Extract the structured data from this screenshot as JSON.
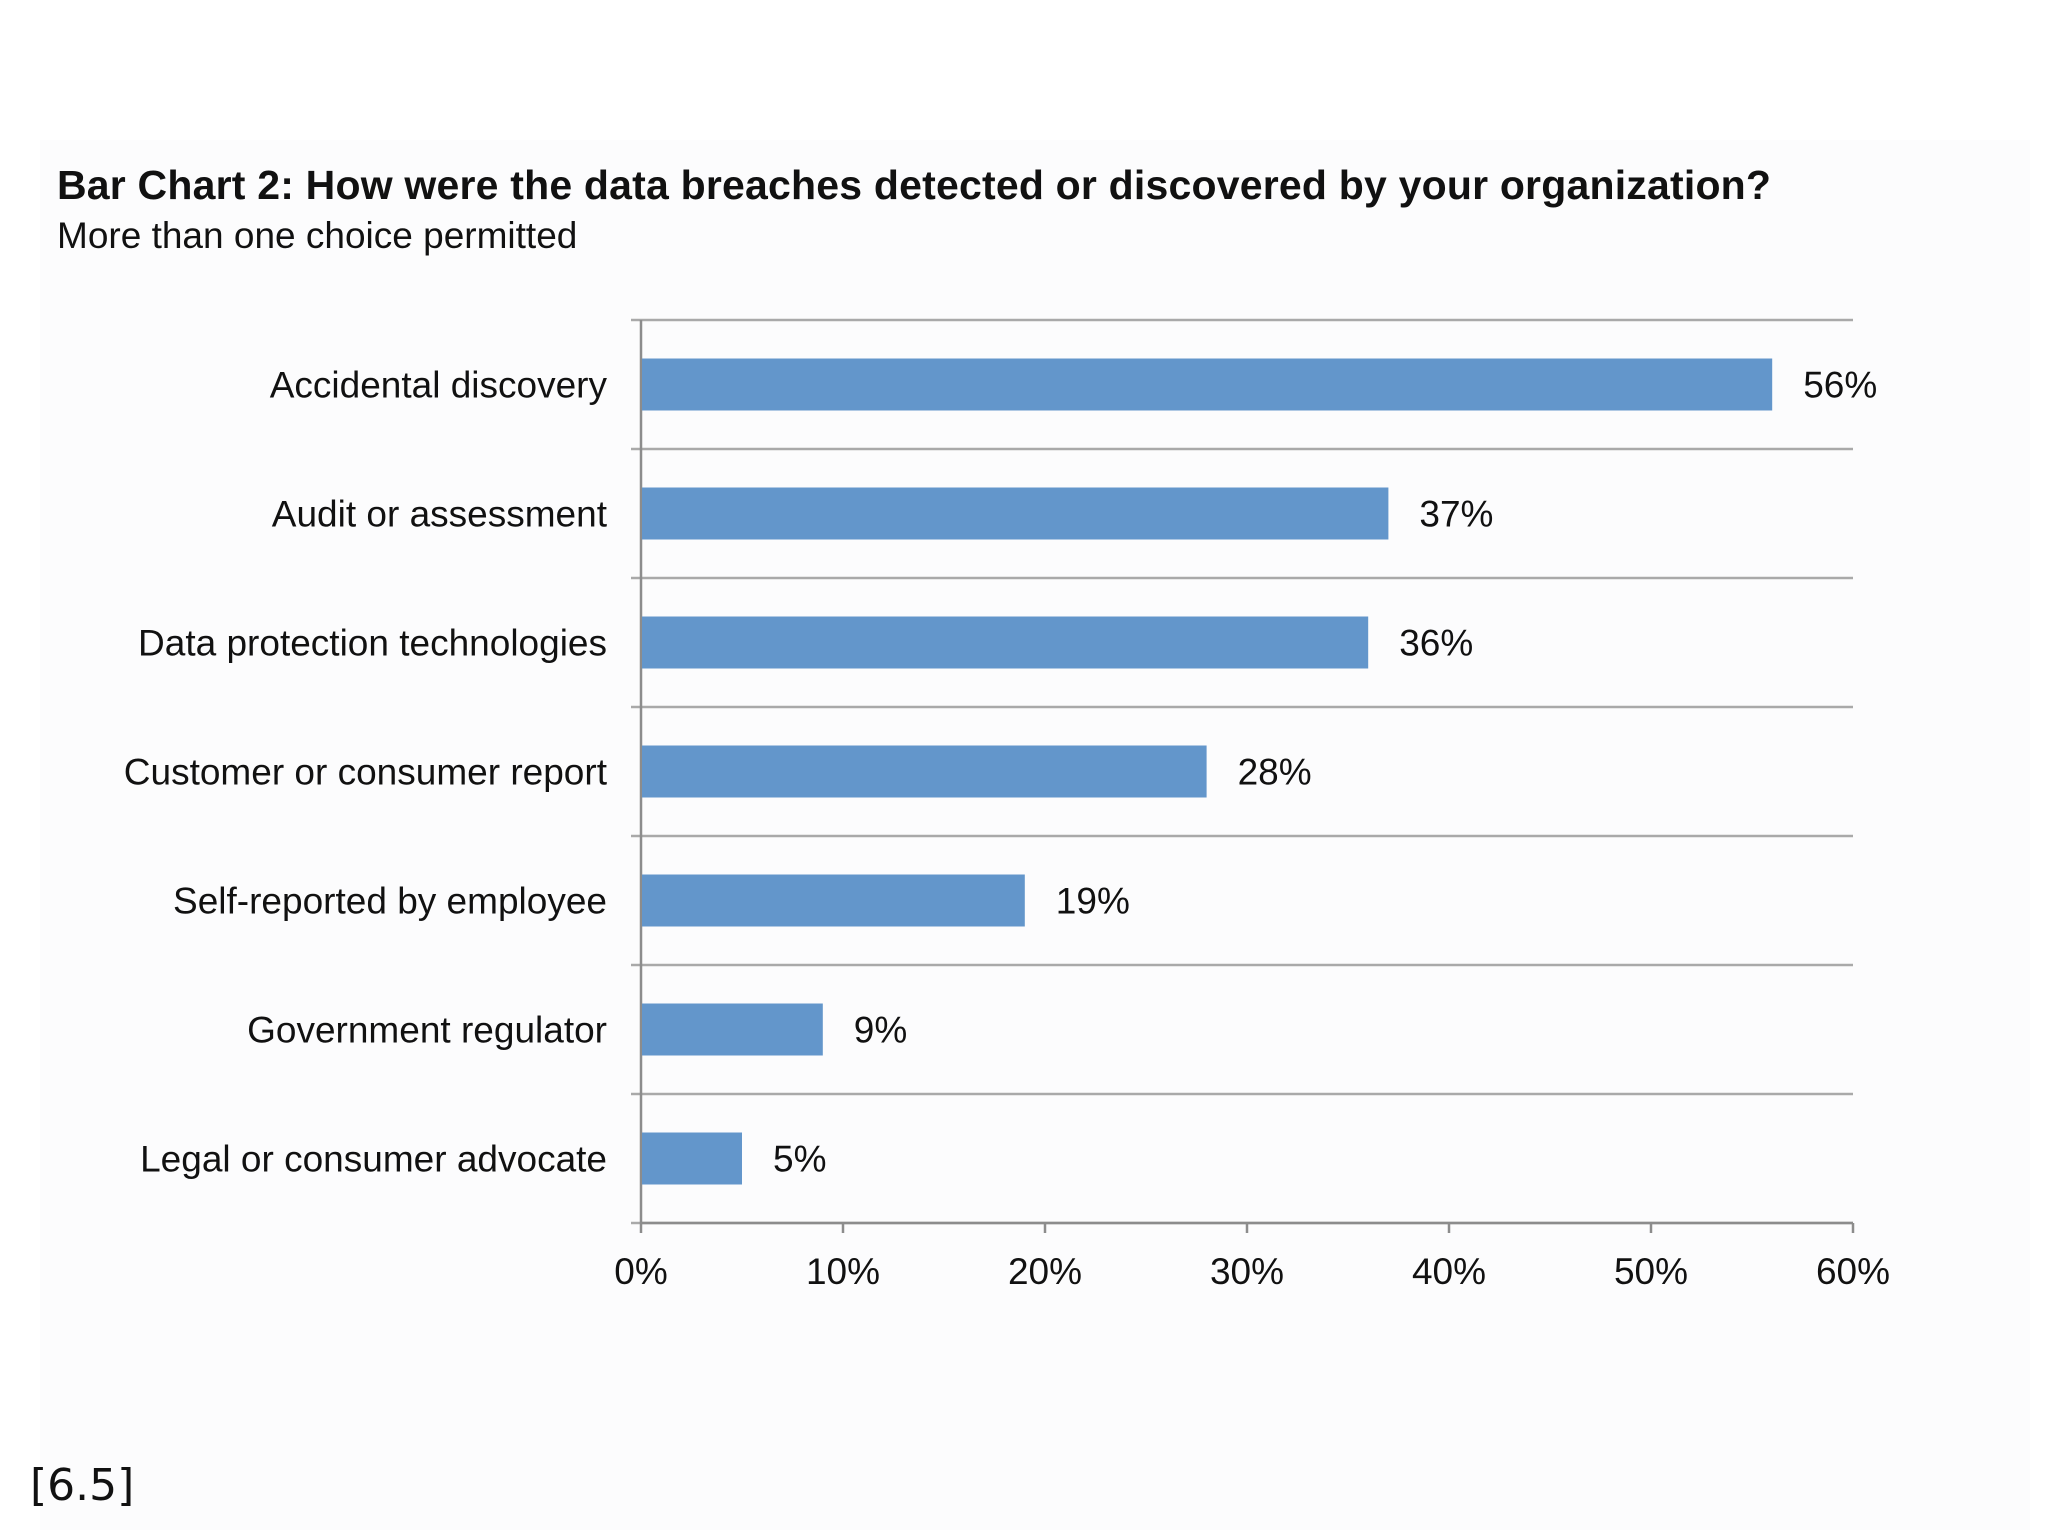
{
  "chart_data": {
    "type": "bar",
    "orientation": "horizontal",
    "title": "Bar Chart 2: How were the data breaches detected or discovered by your organization?",
    "subtitle": "More than one choice permitted",
    "categories": [
      "Accidental discovery",
      "Audit or assessment",
      "Data protection technologies",
      "Customer or consumer report",
      "Self-reported by employee",
      "Government regulator",
      "Legal or consumer advocate"
    ],
    "values": [
      56,
      37,
      36,
      28,
      19,
      9,
      5
    ],
    "value_labels": [
      "56%",
      "37%",
      "36%",
      "28%",
      "19%",
      "9%",
      "5%"
    ],
    "xlim": [
      0,
      60
    ],
    "xticks": [
      0,
      10,
      20,
      30,
      40,
      50,
      60
    ],
    "xtick_labels": [
      "0%",
      "10%",
      "20%",
      "30%",
      "40%",
      "50%",
      "60%"
    ],
    "xlabel": "",
    "ylabel": "",
    "grid": true,
    "colors": {
      "bar": "#6396cb",
      "grid": "#a9a9a9",
      "axis": "#8c8c8c"
    }
  },
  "footnote": "[6.5]"
}
